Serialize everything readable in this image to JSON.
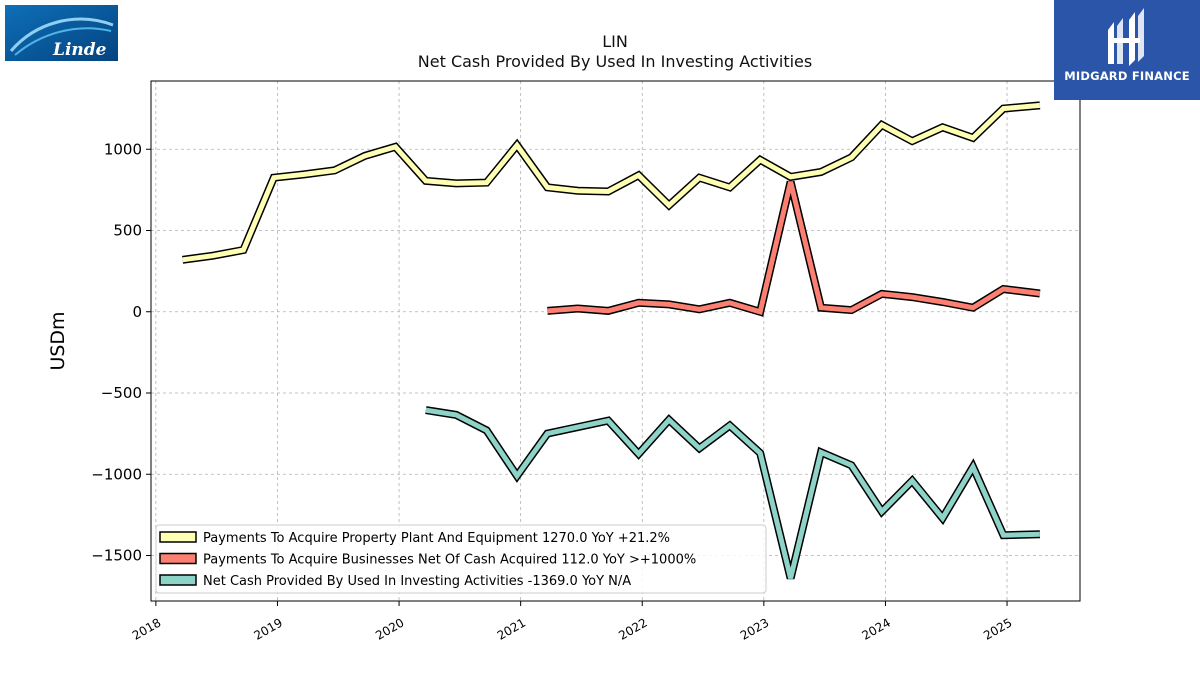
{
  "header": {
    "ticker": "LIN",
    "subtitle": "Net Cash Provided By Used In Investing Activities"
  },
  "logos": {
    "left_text": "Linde",
    "right_text": "MIDGARD FINANCE",
    "right_bg": "#2a55a8",
    "left_bg": "#0b5aa0"
  },
  "chart_data": {
    "type": "line",
    "title": "LIN",
    "subtitle": "Net Cash Provided By Used In Investing Activities",
    "xlabel": "",
    "ylabel": "USDm",
    "xlim": [
      2017.96,
      2025.6
    ],
    "ylim": [
      -1780,
      1420
    ],
    "x_ticks": [
      2018,
      2019,
      2020,
      2021,
      2022,
      2023,
      2024,
      2025
    ],
    "x_tick_labels": [
      "2018",
      "2019",
      "2020",
      "2021",
      "2022",
      "2023",
      "2024",
      "2025"
    ],
    "y_ticks": [
      -1500,
      -1000,
      -500,
      0,
      500,
      1000
    ],
    "y_tick_labels": [
      "−1500",
      "−1000",
      "−500",
      "0",
      "500",
      "1000"
    ],
    "grid": true,
    "legend_position": "lower-left",
    "series": [
      {
        "name": "Payments To Acquire Property Plant And Equipment",
        "legend_label": "Payments To Acquire Property Plant And Equipment  1270.0 YoY +21.2%",
        "color": "#ffffb3",
        "x": [
          2018.22,
          2018.47,
          2018.72,
          2018.97,
          2019.22,
          2019.47,
          2019.72,
          2019.97,
          2020.22,
          2020.47,
          2020.72,
          2020.97,
          2021.22,
          2021.47,
          2021.72,
          2021.97,
          2022.22,
          2022.47,
          2022.72,
          2022.97,
          2023.22,
          2023.47,
          2023.72,
          2023.97,
          2024.22,
          2024.47,
          2024.72,
          2024.97,
          2025.27
        ],
        "y": [
          320,
          345,
          380,
          825,
          845,
          870,
          960,
          1015,
          805,
          790,
          795,
          1025,
          765,
          745,
          740,
          840,
          655,
          825,
          765,
          935,
          830,
          860,
          950,
          1150,
          1050,
          1135,
          1070,
          1250,
          1270
        ]
      },
      {
        "name": "Payments To Acquire Businesses Net Of Cash Acquired",
        "legend_label": "Payments To Acquire Businesses Net Of Cash Acquired  112.0 YoY >+1000%",
        "color": "#fb8072",
        "x": [
          2021.22,
          2021.47,
          2021.72,
          2021.97,
          2022.22,
          2022.47,
          2022.72,
          2022.97,
          2023.22,
          2023.47,
          2023.72,
          2023.97,
          2024.22,
          2024.47,
          2024.72,
          2024.97,
          2025.27
        ],
        "y": [
          5,
          20,
          5,
          55,
          45,
          15,
          55,
          0,
          800,
          25,
          10,
          110,
          90,
          60,
          25,
          140,
          112
        ]
      },
      {
        "name": "Net Cash Provided By Used In Investing Activities",
        "legend_label": "Net Cash Provided By Used In Investing Activities  -1369.0 YoY N/A",
        "color": "#8dd3c7",
        "x": [
          2020.22,
          2020.47,
          2020.72,
          2020.97,
          2021.22,
          2021.47,
          2021.72,
          2021.97,
          2022.22,
          2022.47,
          2022.72,
          2022.97,
          2023.22,
          2023.47,
          2023.72,
          2023.97,
          2024.22,
          2024.47,
          2024.72,
          2024.97,
          2025.27
        ],
        "y": [
          -605,
          -635,
          -730,
          -1010,
          -750,
          -710,
          -670,
          -875,
          -665,
          -840,
          -700,
          -870,
          -1640,
          -865,
          -945,
          -1230,
          -1040,
          -1270,
          -955,
          -1375,
          -1369
        ]
      }
    ]
  }
}
